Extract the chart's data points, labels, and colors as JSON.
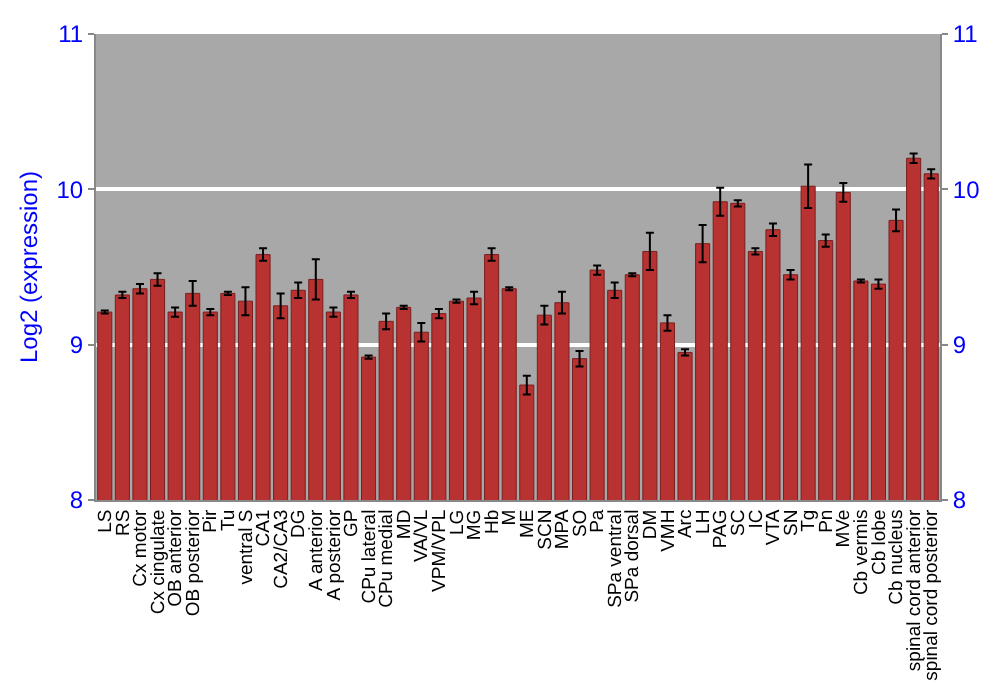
{
  "chart_data": {
    "type": "bar",
    "ylabel": "Log2 (expression)",
    "categories": [
      "LS",
      "RS",
      "Cx motor",
      "Cx cingulate",
      "OB anterior",
      "OB posterior",
      "Pir",
      "Tu",
      "ventral S",
      "CA1",
      "CA2/CA3",
      "DG",
      "A anterior",
      "A posterior",
      "GP",
      "CPu lateral",
      "CPu medial",
      "MD",
      "VA/VL",
      "VPM/VPL",
      "LG",
      "MG",
      "Hb",
      "M",
      "ME",
      "SCN",
      "MPA",
      "SO",
      "Pa",
      "SPa ventral",
      "SPa dorsal",
      "DM",
      "VMH",
      "Arc",
      "LH",
      "PAG",
      "SC",
      "IC",
      "VTA",
      "SN",
      "Tg",
      "Pn",
      "MVe",
      "Cb vermis",
      "Cb lobe",
      "Cb nucleus",
      "spinal cord anterior",
      "spinal cord posterior"
    ],
    "values": [
      9.21,
      9.32,
      9.36,
      9.42,
      9.21,
      9.33,
      9.21,
      9.33,
      9.28,
      9.58,
      9.25,
      9.35,
      9.42,
      9.21,
      9.32,
      8.92,
      9.15,
      9.24,
      9.08,
      9.2,
      9.28,
      9.3,
      9.58,
      9.36,
      8.74,
      9.19,
      9.27,
      8.91,
      9.48,
      9.35,
      9.45,
      9.6,
      9.14,
      8.95,
      9.65,
      9.92,
      9.91,
      9.6,
      9.74,
      9.45,
      10.02,
      9.67,
      9.98,
      9.41,
      9.39,
      9.8,
      10.2,
      10.1
    ],
    "errors": [
      0.01,
      0.02,
      0.03,
      0.04,
      0.03,
      0.08,
      0.02,
      0.01,
      0.09,
      0.04,
      0.08,
      0.05,
      0.13,
      0.03,
      0.02,
      0.01,
      0.05,
      0.01,
      0.06,
      0.03,
      0.01,
      0.04,
      0.04,
      0.01,
      0.06,
      0.06,
      0.07,
      0.05,
      0.03,
      0.05,
      0.01,
      0.12,
      0.05,
      0.02,
      0.12,
      0.09,
      0.02,
      0.02,
      0.04,
      0.03,
      0.14,
      0.04,
      0.06,
      0.01,
      0.03,
      0.07,
      0.03,
      0.03
    ],
    "color": "#b83232",
    "ylim": [
      8,
      11
    ],
    "yticks": [
      8,
      9,
      10,
      11
    ],
    "y2lim": [
      8,
      11
    ],
    "y2ticks": [
      8,
      9,
      10,
      11
    ],
    "grid": "y"
  }
}
